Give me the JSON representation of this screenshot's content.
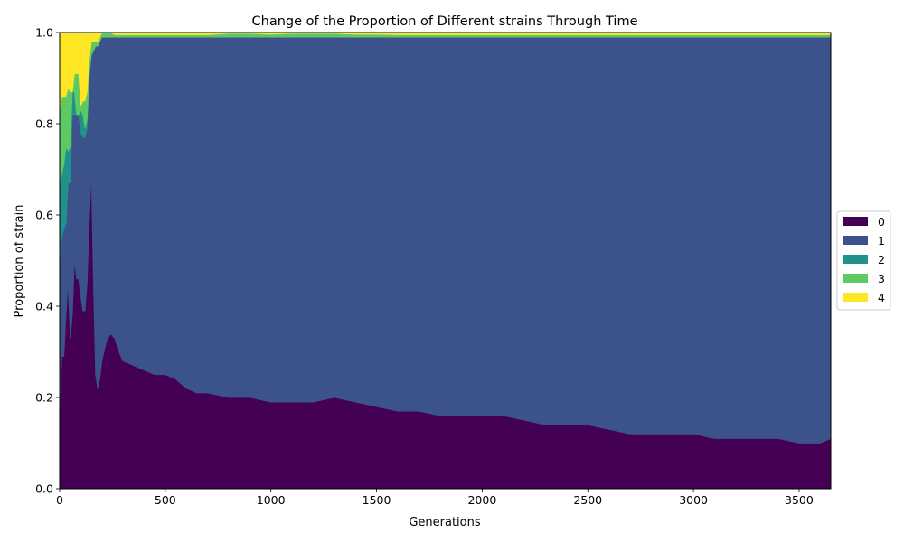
{
  "chart_data": {
    "type": "area",
    "stacked": true,
    "title": "Change of the Proportion of Different strains Through Time",
    "xlabel": "Generations",
    "ylabel": "Proportion of strain",
    "xlim": [
      0,
      3650
    ],
    "ylim": [
      0.0,
      1.0
    ],
    "xticks": [
      "0",
      "500",
      "1000",
      "1500",
      "2000",
      "2500",
      "3000",
      "3500"
    ],
    "xtick_values": [
      0,
      500,
      1000,
      1500,
      2000,
      2500,
      3000,
      3500
    ],
    "yticks": [
      "0.0",
      "0.2",
      "0.4",
      "0.6",
      "0.8",
      "1.0"
    ],
    "ytick_values": [
      0.0,
      0.2,
      0.4,
      0.6,
      0.8,
      1.0
    ],
    "grid": false,
    "legend_position": "right",
    "x": [
      0,
      10,
      20,
      30,
      40,
      50,
      60,
      70,
      80,
      90,
      100,
      110,
      120,
      130,
      140,
      150,
      160,
      170,
      180,
      190,
      200,
      220,
      240,
      260,
      280,
      300,
      350,
      400,
      450,
      500,
      550,
      600,
      650,
      700,
      800,
      900,
      1000,
      1100,
      1200,
      1300,
      1400,
      1500,
      1600,
      1700,
      1800,
      1900,
      2000,
      2100,
      2200,
      2300,
      2400,
      2500,
      2600,
      2700,
      2800,
      2900,
      3000,
      3100,
      3200,
      3300,
      3400,
      3500,
      3600,
      3650
    ],
    "series": [
      {
        "name": "0",
        "color": "#440154",
        "values": [
          0.17,
          0.29,
          0.29,
          0.38,
          0.45,
          0.33,
          0.38,
          0.5,
          0.46,
          0.46,
          0.42,
          0.39,
          0.39,
          0.45,
          0.58,
          0.69,
          0.45,
          0.25,
          0.22,
          0.24,
          0.28,
          0.32,
          0.34,
          0.33,
          0.3,
          0.28,
          0.27,
          0.26,
          0.25,
          0.25,
          0.24,
          0.22,
          0.21,
          0.21,
          0.2,
          0.2,
          0.19,
          0.19,
          0.19,
          0.2,
          0.19,
          0.18,
          0.17,
          0.17,
          0.16,
          0.16,
          0.16,
          0.16,
          0.15,
          0.14,
          0.14,
          0.14,
          0.13,
          0.12,
          0.12,
          0.12,
          0.12,
          0.11,
          0.11,
          0.11,
          0.11,
          0.1,
          0.1,
          0.11
        ]
      },
      {
        "name": "1",
        "color": "#3b528b",
        "values": [
          0.33,
          0.26,
          0.28,
          0.2,
          0.22,
          0.34,
          0.44,
          0.32,
          0.36,
          0.36,
          0.36,
          0.38,
          0.38,
          0.34,
          0.32,
          0.26,
          0.51,
          0.72,
          0.75,
          0.74,
          0.71,
          0.67,
          0.65,
          0.66,
          0.69,
          0.71,
          0.72,
          0.73,
          0.74,
          0.74,
          0.75,
          0.77,
          0.78,
          0.78,
          0.79,
          0.79,
          0.8,
          0.8,
          0.8,
          0.79,
          0.8,
          0.81,
          0.82,
          0.82,
          0.83,
          0.83,
          0.83,
          0.83,
          0.84,
          0.85,
          0.85,
          0.85,
          0.86,
          0.87,
          0.87,
          0.87,
          0.87,
          0.88,
          0.88,
          0.88,
          0.88,
          0.89,
          0.89,
          0.88
        ]
      },
      {
        "name": "2",
        "color": "#21918c",
        "values": [
          0.17,
          0.14,
          0.14,
          0.17,
          0.07,
          0.08,
          0.05,
          0.05,
          0.0,
          0.0,
          0.05,
          0.05,
          0.02,
          0.02,
          0.01,
          0.0,
          0.0,
          0.0,
          0.0,
          0.0,
          0.0,
          0.0,
          0.0,
          0.0,
          0.0,
          0.0,
          0.0,
          0.0,
          0.0,
          0.0,
          0.0,
          0.0,
          0.0,
          0.0,
          0.0,
          0.0,
          0.0,
          0.0,
          0.0,
          0.0,
          0.0,
          0.0,
          0.0,
          0.0,
          0.0,
          0.0,
          0.0,
          0.0,
          0.0,
          0.0,
          0.0,
          0.0,
          0.0,
          0.0,
          0.0,
          0.0,
          0.0,
          0.0,
          0.0,
          0.0,
          0.0,
          0.0,
          0.0,
          0.0
        ]
      },
      {
        "name": "3",
        "color": "#5ec962",
        "values": [
          0.16,
          0.17,
          0.15,
          0.11,
          0.14,
          0.12,
          0.0,
          0.04,
          0.09,
          0.09,
          0.01,
          0.03,
          0.06,
          0.06,
          0.03,
          0.03,
          0.02,
          0.01,
          0.01,
          0.01,
          0.01,
          0.01,
          0.01,
          0.005,
          0.005,
          0.005,
          0.005,
          0.005,
          0.005,
          0.005,
          0.005,
          0.005,
          0.005,
          0.005,
          0.008,
          0.008,
          0.006,
          0.008,
          0.008,
          0.008,
          0.006,
          0.006,
          0.005,
          0.005,
          0.005,
          0.005,
          0.005,
          0.005,
          0.005,
          0.005,
          0.005,
          0.005,
          0.005,
          0.005,
          0.005,
          0.005,
          0.005,
          0.005,
          0.005,
          0.005,
          0.005,
          0.005,
          0.005,
          0.005
        ]
      },
      {
        "name": "4",
        "color": "#fde725",
        "values": [
          0.17,
          0.14,
          0.14,
          0.14,
          0.12,
          0.13,
          0.13,
          0.09,
          0.09,
          0.09,
          0.16,
          0.15,
          0.15,
          0.13,
          0.06,
          0.02,
          0.02,
          0.02,
          0.02,
          0.01,
          0.0,
          0.0,
          0.0,
          0.005,
          0.005,
          0.005,
          0.005,
          0.005,
          0.005,
          0.005,
          0.005,
          0.005,
          0.005,
          0.005,
          0.002,
          0.002,
          0.004,
          0.002,
          0.002,
          0.002,
          0.004,
          0.004,
          0.005,
          0.005,
          0.005,
          0.005,
          0.005,
          0.005,
          0.005,
          0.005,
          0.005,
          0.005,
          0.005,
          0.005,
          0.005,
          0.005,
          0.005,
          0.005,
          0.005,
          0.005,
          0.005,
          0.005,
          0.005,
          0.005
        ]
      }
    ]
  }
}
